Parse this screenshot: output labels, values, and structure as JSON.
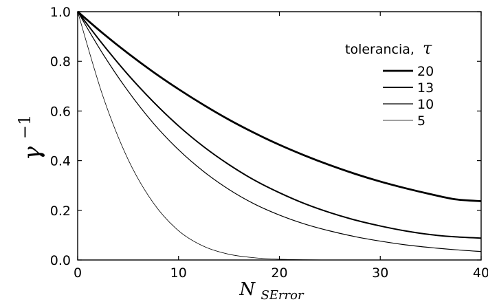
{
  "chart_data": {
    "type": "line",
    "xlabel": "N",
    "xlabel_subscript": "SError",
    "ylabel": "γ",
    "ylabel_superscript": "−1",
    "xlim": [
      0,
      40
    ],
    "ylim": [
      0,
      1
    ],
    "xticks": [
      0,
      10,
      20,
      30,
      40
    ],
    "xtick_labels": [
      "0",
      "10",
      "20",
      "30",
      "40"
    ],
    "yticks": [
      0,
      0.2,
      0.4,
      0.6,
      0.8,
      1.0
    ],
    "ytick_labels": [
      "0.0",
      "0.2",
      "0.4",
      "0.6",
      "0.8",
      "1.0"
    ],
    "grid": false,
    "legend_placement": "top-right",
    "legend_title": "tolerancia,",
    "legend_title_symbol": "τ",
    "x": [
      0,
      2.5,
      5,
      7.5,
      10,
      12.5,
      15,
      17.5,
      20,
      22.5,
      25,
      27.5,
      30,
      32.5,
      35,
      37.5,
      40
    ],
    "series": [
      {
        "name": "20",
        "stroke_width": 2.8,
        "color": "#000000",
        "values": [
          1.0,
          0.913,
          0.832,
          0.757,
          0.688,
          0.624,
          0.565,
          0.512,
          0.464,
          0.421,
          0.382,
          0.347,
          0.316,
          0.289,
          0.265,
          0.244,
          0.237
        ]
      },
      {
        "name": "13",
        "stroke_width": 2.0,
        "color": "#000000",
        "values": [
          1.0,
          0.868,
          0.746,
          0.637,
          0.54,
          0.456,
          0.384,
          0.322,
          0.271,
          0.227,
          0.191,
          0.161,
          0.137,
          0.117,
          0.102,
          0.093,
          0.088
        ]
      },
      {
        "name": "10",
        "stroke_width": 1.2,
        "color": "#000000",
        "values": [
          1.0,
          0.83,
          0.68,
          0.551,
          0.444,
          0.356,
          0.284,
          0.226,
          0.181,
          0.145,
          0.117,
          0.094,
          0.076,
          0.061,
          0.05,
          0.041,
          0.034
        ]
      },
      {
        "name": "5",
        "stroke_width": 0.8,
        "color": "#000000",
        "values": [
          1.0,
          0.66,
          0.405,
          0.23,
          0.118,
          0.055,
          0.023,
          0.009,
          0.003,
          0.001,
          0.0,
          0.0,
          0.0,
          0.0,
          0.0,
          0.0,
          0.0
        ]
      }
    ]
  }
}
